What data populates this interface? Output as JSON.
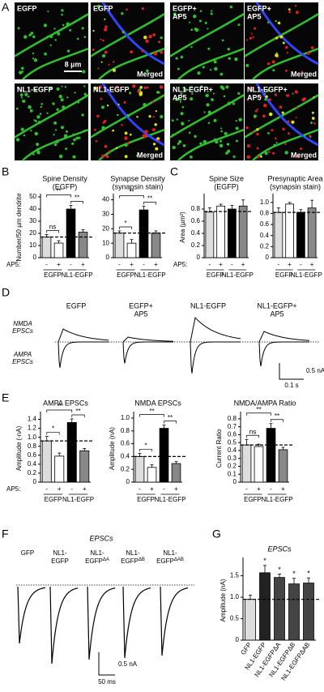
{
  "panel_letters": [
    "A",
    "B",
    "C",
    "D",
    "E",
    "F",
    "G"
  ],
  "images": [
    {
      "label": [
        "EGFP"
      ],
      "scale": "8 µm"
    },
    {
      "label": [
        "EGFP"
      ],
      "merged": "Merged"
    },
    {
      "label": [
        "EGFP+",
        "AP5"
      ]
    },
    {
      "label": [
        "EGFP+",
        "AP5"
      ],
      "merged": "Merged"
    },
    {
      "label": [
        "NL1-EGFP"
      ]
    },
    {
      "label": [
        "NL1-EGFP"
      ],
      "merged": "Merged"
    },
    {
      "label": [
        "NL1-EGFP+",
        "AP5"
      ]
    },
    {
      "label": [
        "NL1-EGFP+",
        "AP5"
      ],
      "merged": "Merged"
    }
  ],
  "chart_data": [
    {
      "type": "bar",
      "title": "Spine Density",
      "subtitle": "(EGFP)",
      "ylabel": "Number/50 µm dendrite",
      "ap5_label": "AP5:",
      "categories": [
        "-",
        "+",
        "-",
        "+"
      ],
      "groups": [
        "EGFP",
        "NL1-EGFP"
      ],
      "values": [
        17,
        12,
        40,
        21
      ],
      "errors": [
        2,
        2,
        3,
        2
      ],
      "colors": [
        "#dddddd",
        "#ffffff",
        "#000000",
        "#888888"
      ],
      "reference_line": 17,
      "significance": [
        "ns",
        "**",
        "**"
      ],
      "ylim": [
        0,
        50
      ],
      "yticks": [
        0,
        10,
        20,
        30,
        40,
        50
      ]
    },
    {
      "type": "bar",
      "title": "Synapse Density",
      "subtitle": "(synapsin stain)",
      "categories": [
        "-",
        "+",
        "-",
        "+"
      ],
      "groups": [
        "EGFP",
        "NL1-EGFP"
      ],
      "values": [
        17,
        10,
        33,
        17
      ],
      "errors": [
        1.5,
        2.5,
        2.5,
        1.5
      ],
      "colors": [
        "#dddddd",
        "#ffffff",
        "#000000",
        "#888888"
      ],
      "reference_line": 17,
      "significance": [
        "*",
        "**",
        "**"
      ],
      "ylim": [
        0,
        42
      ],
      "yticks": [
        0,
        10,
        20,
        30,
        40
      ]
    },
    {
      "type": "bar",
      "title": "Spine Size",
      "subtitle": "(EGFP)",
      "ylabel": "Area (µm²)",
      "ap5_label": "AP5:",
      "categories": [
        "-",
        "+",
        "-",
        "+"
      ],
      "groups": [
        "EGFP",
        "NL1-EGFP"
      ],
      "values": [
        0.75,
        0.85,
        0.8,
        0.85
      ],
      "errors": [
        0.07,
        0.03,
        0.06,
        0.1
      ],
      "colors": [
        "#dddddd",
        "#ffffff",
        "#000000",
        "#888888"
      ],
      "reference_line": 0.76,
      "ylim": [
        0,
        1.0
      ],
      "yticks": [
        0,
        0.2,
        0.4,
        0.6,
        0.8
      ]
    },
    {
      "type": "bar",
      "title": "Presynaptic Area",
      "subtitle": "(synapsin stain)",
      "categories": [
        "-",
        "+",
        "-",
        "+"
      ],
      "groups": [
        "EGFP",
        "NL1-EGFP"
      ],
      "values": [
        0.82,
        0.97,
        0.82,
        0.9
      ],
      "errors": [
        0.08,
        0.03,
        0.05,
        0.14
      ],
      "colors": [
        "#dddddd",
        "#ffffff",
        "#000000",
        "#888888"
      ],
      "reference_line": 0.82,
      "ylim": [
        0,
        1.1
      ],
      "yticks": [
        0,
        0.2,
        0.4,
        0.6,
        0.8,
        {
          "value": 1,
          "label": "1.0"
        }
      ]
    },
    {
      "type": "bar",
      "title": "AMPA EPSCs",
      "ylabel": "Amplitude (-nA)",
      "ap5_label": "AP5:",
      "categories": [
        "-",
        "+",
        "-",
        "+"
      ],
      "groups": [
        "EGFP",
        "NL1-EGFP"
      ],
      "values": [
        0.92,
        0.58,
        1.33,
        0.7
      ],
      "errors": [
        0.1,
        0.07,
        0.08,
        0.05
      ],
      "colors": [
        "#dddddd",
        "#ffffff",
        "#000000",
        "#888888"
      ],
      "reference_line": 0.92,
      "significance": [
        "*",
        "**",
        "**"
      ],
      "ylim": [
        0,
        1.5
      ],
      "yticks": [
        0,
        0.2,
        0.4,
        0.6,
        0.8,
        {
          "value": 1,
          "label": "1.0"
        },
        1.2,
        1.4
      ]
    },
    {
      "type": "bar",
      "title": "NMDA EPSCs",
      "ylabel": "Amplitude (nA)",
      "categories": [
        "-",
        "+",
        "-",
        "+"
      ],
      "groups": [
        "EGFP",
        "NL1-EGFP"
      ],
      "values": [
        0.4,
        0.23,
        0.84,
        0.29
      ],
      "errors": [
        0.05,
        0.04,
        0.05,
        0.03
      ],
      "colors": [
        "#dddddd",
        "#ffffff",
        "#000000",
        "#888888"
      ],
      "reference_line": 0.4,
      "significance": [
        "*",
        "**",
        "**"
      ],
      "ylim": [
        0,
        1.05
      ],
      "yticks": [
        0,
        0.2,
        0.4,
        0.6,
        0.8,
        {
          "value": 1,
          "label": "1.0"
        }
      ]
    },
    {
      "type": "bar",
      "title": "NMDA/AMPA Ratio",
      "ylabel": "Current Ratio",
      "categories": [
        "-",
        "+",
        "-",
        "+"
      ],
      "groups": [
        "EGFP",
        "NL1-EGFP"
      ],
      "values": [
        0.47,
        0.45,
        0.68,
        0.41
      ],
      "errors": [
        0.07,
        0.03,
        0.06,
        0.03
      ],
      "colors": [
        "#dddddd",
        "#ffffff",
        "#000000",
        "#888888"
      ],
      "reference_line": 0.47,
      "significance": [
        "ns",
        "**",
        "**"
      ],
      "ylim": [
        0,
        0.85
      ],
      "yticks": [
        0,
        0.1,
        0.2,
        0.3,
        0.4,
        0.5,
        0.6,
        0.7,
        0.8
      ]
    },
    {
      "type": "bar",
      "title": "EPSCs",
      "ylabel": "Amplitude (nA)",
      "categories": [
        "GFP",
        "NL1-EGFP",
        "NL1-EGFPΔA",
        "NL1-EGFPΔB",
        "NL1-EGFPΔAB"
      ],
      "values": [
        0.95,
        1.57,
        1.46,
        1.31,
        1.33
      ],
      "errors": [
        0.1,
        0.17,
        0.08,
        0.13,
        0.12
      ],
      "colors": [
        "#dddddd",
        "#222222",
        "#444444",
        "#444444",
        "#444444"
      ],
      "reference_line": 0.95,
      "star_labels": [
        "*",
        "*",
        "*",
        "*"
      ],
      "ylim": [
        0,
        1.85
      ],
      "yticks": [
        0,
        0.5,
        {
          "value": 1,
          "label": "1.0"
        },
        1.5
      ]
    }
  ],
  "traces_d": {
    "columns": [
      [
        "EGFP"
      ],
      [
        "EGFP+",
        "AP5"
      ],
      [
        "NL1-EGFP"
      ],
      [
        "NL1-EGFP+",
        "AP5"
      ]
    ],
    "nmda": [
      "NMDA",
      "EPSCs"
    ],
    "ampa": [
      "AMPA",
      "EPSCs"
    ],
    "scale_y": "0.5 nA",
    "scale_x": "0.1 s"
  },
  "traces_f": {
    "title": "EPSCs",
    "columns": [
      {
        "lines": [
          "GFP"
        ]
      },
      {
        "lines": [
          "NL1-",
          "EGFP"
        ]
      },
      {
        "lines": [
          "NL1-",
          "EGFP"
        ],
        "sup": "ΔA"
      },
      {
        "lines": [
          "NL1-",
          "EGFP"
        ],
        "sup": "ΔB"
      },
      {
        "lines": [
          "NL1-",
          "EGFP"
        ],
        "sup": "ΔAB"
      }
    ],
    "scale_y": "0.5 nA",
    "scale_x": "50 ms"
  }
}
